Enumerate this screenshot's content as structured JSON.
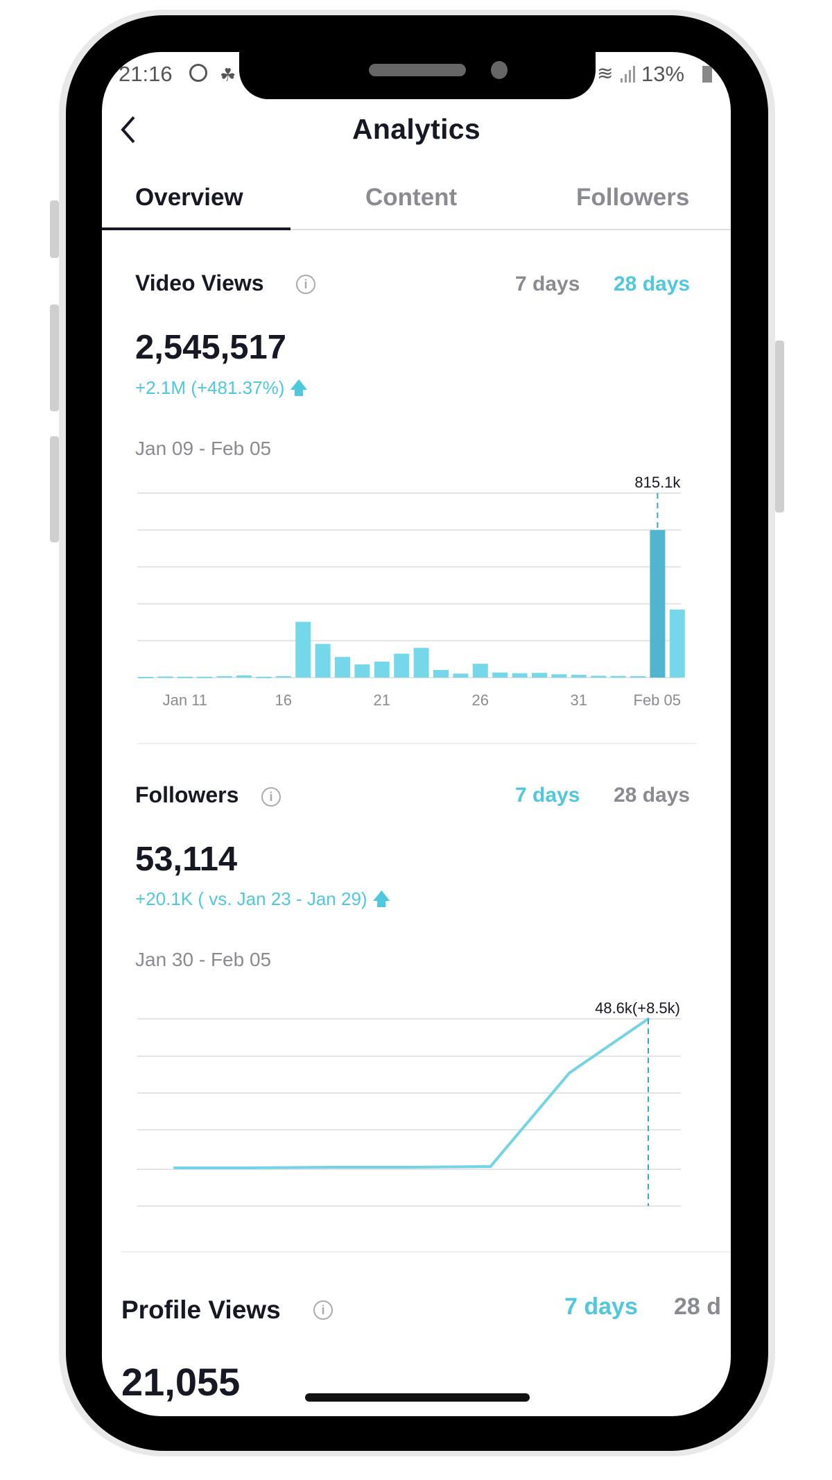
{
  "status_bar": {
    "time": "21:16",
    "battery": "13%",
    "icons": [
      "whatsapp-icon",
      "notification-icon",
      "wifi-icon",
      "signal-icon",
      "battery-charging-icon"
    ]
  },
  "header": {
    "title": "Analytics",
    "back_icon": "chevron-left-icon"
  },
  "tabs": [
    {
      "label": "Overview",
      "active": true
    },
    {
      "label": "Content",
      "active": false
    },
    {
      "label": "Followers",
      "active": false
    }
  ],
  "colors": {
    "accent": "#4fc8dd",
    "bar": "#74d8ea",
    "bar_highlight": "#52b5cf",
    "text": "#161823",
    "muted": "#8a8b91"
  },
  "video_views": {
    "title": "Video Views",
    "range_7": "7 days",
    "range_28": "28 days",
    "selected_range": "28 days",
    "total": "2,545,517",
    "delta": "+2.1M (+481.37%)",
    "period": "Jan 09 - Feb 05"
  },
  "followers": {
    "title": "Followers",
    "range_7": "7 days",
    "range_28": "28 days",
    "selected_range": "7 days",
    "total": "53,114",
    "delta": "+20.1K ( vs. Jan 23 - Jan 29)",
    "period": "Jan 30 - Feb 05"
  },
  "profile_views": {
    "title": "Profile Views",
    "range_7": "7 days",
    "range_28": "28 d",
    "selected_range": "7 days",
    "total": "21,055"
  },
  "chart_data": [
    {
      "type": "bar",
      "categories": [
        "Jan 09",
        "Jan 10",
        "Jan 11",
        "Jan 12",
        "Jan 13",
        "Jan 14",
        "Jan 15",
        "Jan 16",
        "Jan 17",
        "Jan 18",
        "Jan 19",
        "Jan 20",
        "Jan 21",
        "Jan 22",
        "Jan 23",
        "Jan 24",
        "Jan 25",
        "Jan 26",
        "Jan 27",
        "Jan 28",
        "Jan 29",
        "Jan 30",
        "Jan 31",
        "Feb 01",
        "Feb 02",
        "Feb 03",
        "Feb 04",
        "Feb 05"
      ],
      "values": [
        4000,
        6000,
        5000,
        5000,
        8000,
        12000,
        5000,
        8000,
        308000,
        186000,
        114000,
        73000,
        88000,
        132000,
        164000,
        42000,
        22000,
        76000,
        28000,
        24000,
        26000,
        18000,
        15000,
        10000,
        9000,
        8000,
        815100,
        376000
      ],
      "tick_labels": [
        "Jan 11",
        "16",
        "21",
        "26",
        "31",
        "Feb 05"
      ],
      "tick_indices": [
        2,
        7,
        12,
        17,
        22,
        27
      ],
      "highlight_index": 26,
      "highlight_label": "815.1k",
      "ylim": [
        0,
        1019000
      ],
      "grid": true
    },
    {
      "type": "line",
      "x": [
        "Jan 30",
        "Jan 31",
        "Feb 01",
        "Feb 02",
        "Feb 03",
        "Feb 04",
        "Feb 05"
      ],
      "values": [
        25200,
        25200,
        25300,
        25300,
        25400,
        40100,
        48600
      ],
      "highlight_index": 6,
      "highlight_label": "48.6k(+8.5k)",
      "ylim": [
        19200,
        48600
      ],
      "grid": true
    }
  ]
}
